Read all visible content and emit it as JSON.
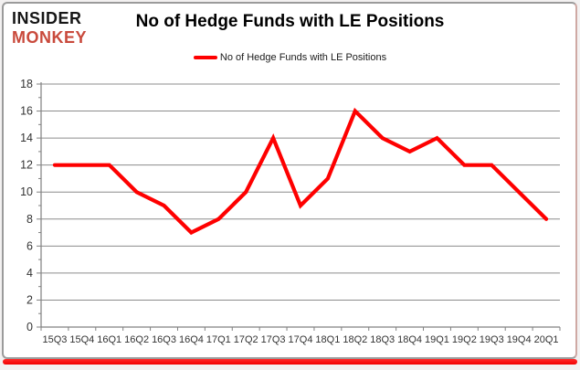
{
  "header": {
    "logo": {
      "line1": "INSIDER",
      "line2": "MONKEY"
    },
    "title": "No of Hedge Funds with LE Positions"
  },
  "legend": {
    "label": "No of Hedge Funds with LE Positions"
  },
  "colors": {
    "series": "#fe0000",
    "gridline": "#8c8c8c",
    "axis": "#808080",
    "tick_label": "#333333",
    "logo_accent": "#c94a3c",
    "card_border": "#9b9b9b",
    "bottom_bar": "#f20000"
  },
  "chart_data": {
    "type": "line",
    "title": "No of Hedge Funds with LE Positions",
    "categories": [
      "15Q3",
      "15Q4",
      "16Q1",
      "16Q2",
      "16Q3",
      "16Q4",
      "17Q1",
      "17Q2",
      "17Q3",
      "17Q4",
      "18Q1",
      "18Q2",
      "18Q3",
      "18Q4",
      "19Q1",
      "19Q2",
      "19Q3",
      "19Q4",
      "20Q1"
    ],
    "series": [
      {
        "name": "No of Hedge Funds with LE Positions",
        "color": "#fe0000",
        "values": [
          12,
          12,
          12,
          10,
          9,
          7,
          8,
          10,
          14,
          9,
          11,
          16,
          14,
          13,
          14,
          12,
          12,
          10,
          8
        ]
      }
    ],
    "xlabel": "",
    "ylabel": "",
    "ylim": [
      0,
      18
    ],
    "yticks": [
      0,
      2,
      4,
      6,
      8,
      10,
      12,
      14,
      16,
      18
    ],
    "minor_ytick_step": 1,
    "grid": true,
    "legend_position": "top-center"
  }
}
